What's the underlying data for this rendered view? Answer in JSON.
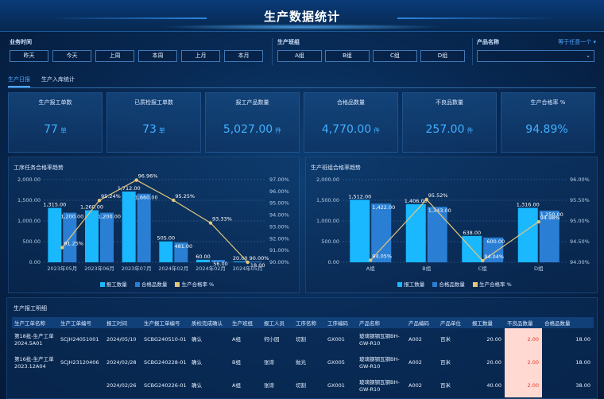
{
  "page": {
    "title": "生产数据统计"
  },
  "filters": {
    "time": {
      "label": "业务时间",
      "options": [
        "昨天",
        "今天",
        "上周",
        "本周",
        "上月",
        "本月"
      ]
    },
    "team": {
      "label": "生产班组",
      "options": [
        "A组",
        "B组",
        "C组",
        "D组"
      ]
    },
    "product": {
      "label": "产品名称",
      "match_link": "等于任意一个 ▾",
      "value": ""
    }
  },
  "tabs": [
    {
      "label": "生产日报",
      "active": true
    },
    {
      "label": "生产入库统计",
      "active": false
    }
  ],
  "kpis": [
    {
      "label": "生产报工单数",
      "value": "77",
      "unit": "单"
    },
    {
      "label": "已质检报工单数",
      "value": "73",
      "unit": "单"
    },
    {
      "label": "报工产品数量",
      "value": "5,027.00",
      "unit": "件"
    },
    {
      "label": "合格品数量",
      "value": "4,770.00",
      "unit": "件"
    },
    {
      "label": "不良品数量",
      "value": "257.00",
      "unit": "件"
    },
    {
      "label": "生产合格率 %",
      "value": "94.89%",
      "unit": ""
    }
  ],
  "chart_data": [
    {
      "type": "bar",
      "title": "工序任务合格率趋势",
      "categories": [
        "2023年05月",
        "2023年06月",
        "2023年07月",
        "2024年02月",
        "2024年02月",
        "2024年05月"
      ],
      "ylim": [
        0,
        2000
      ],
      "y2lim": [
        90,
        97
      ],
      "yticks": [
        "0.00",
        "500.00",
        "1,000.00",
        "1,500.00",
        "2,000.00"
      ],
      "y2ticks": [
        "90.00%",
        "91.00%",
        "92.00%",
        "93.00%",
        "94.00%",
        "95.00%",
        "96.00%",
        "97.00%"
      ],
      "series": [
        {
          "name": "报工数量",
          "kind": "bar",
          "color": "#19b8ff",
          "values": [
            1315,
            1260,
            1712,
            505,
            60,
            20
          ]
        },
        {
          "name": "合格品数量",
          "kind": "bar",
          "color": "#2a7fd4",
          "values": [
            1200,
            1200,
            1660,
            481,
            56,
            18
          ]
        },
        {
          "name": "生产合格率 %",
          "kind": "line",
          "color": "#e5c77a",
          "axis": "right",
          "values": [
            91.25,
            95.24,
            96.96,
            95.25,
            93.33,
            90.0
          ]
        }
      ],
      "bar_labels": [
        [
          "1,315.00",
          "1,260.00",
          "1,712.00",
          "505.00",
          "60.00",
          "20.00"
        ],
        [
          "1,200.00",
          "1,200.00",
          "1,660.00",
          "481.00",
          "56.00",
          "18.00"
        ]
      ],
      "line_labels": [
        "91.25%",
        "95.24%",
        "96.96%",
        "95.25%",
        "93.33%",
        "90.00%"
      ]
    },
    {
      "type": "bar",
      "title": "生产班组合格率趋势",
      "categories": [
        "A组",
        "B组",
        "C组",
        "D组"
      ],
      "ylim": [
        0,
        2000
      ],
      "y2lim": [
        94,
        96
      ],
      "yticks": [
        "0.00",
        "500.00",
        "1,000.00",
        "1,500.00",
        "2,000.00"
      ],
      "y2ticks": [
        "94.00%",
        "94.50%",
        "95.00%",
        "95.50%",
        "96.00%"
      ],
      "series": [
        {
          "name": "报工数量",
          "kind": "bar",
          "color": "#19b8ff",
          "values": [
            1512,
            1406,
            638,
            1316
          ]
        },
        {
          "name": "合格品数量",
          "kind": "bar",
          "color": "#2a7fd4",
          "values": [
            1422,
            1343,
            600,
            1250
          ]
        },
        {
          "name": "生产合格率 %",
          "kind": "line",
          "color": "#e5c77a",
          "axis": "right",
          "values": [
            94.05,
            95.52,
            94.04,
            94.98
          ]
        }
      ],
      "bar_labels": [
        [
          "1,512.00",
          "1,406.00",
          "638.00",
          "1,316.00"
        ],
        [
          "1,422.00",
          "1,343.00",
          "600.00",
          "1,250.00"
        ]
      ],
      "line_labels": [
        "94.05%",
        "95.52%",
        "94.04%",
        "94.98%"
      ]
    }
  ],
  "detail": {
    "title": "生产报工明细",
    "columns": [
      "生产工单名称",
      "生产工单编号",
      "报工时间",
      "生产报工单编号",
      "质检完成确认",
      "生产班组",
      "报工人员",
      "工序名称",
      "工序编码",
      "产品名称",
      "产品编码",
      "产品单位",
      "报工数量",
      "不良品数量",
      "合格品数量"
    ],
    "rows": [
      [
        "第18批-生产工单2024.5A01",
        "SCJH24051001",
        "2024/05/10",
        "SCBG240510-01",
        "确认",
        "A组",
        "何小园",
        "切割",
        "GX001",
        "玻璃钢钢瓦钢BH-GW-R10",
        "A002",
        "百米",
        "20.00",
        "2.00",
        "18.00"
      ],
      [
        "第16批-生产工单2023.12A04",
        "SCJH23120406",
        "2024/02/28",
        "SCBG240228-01",
        "确认",
        "B组",
        "张谛",
        "抛光",
        "GX005",
        "玻璃钢钢瓦钢BH-GW-R10",
        "A002",
        "百米",
        "20.00",
        "2.00",
        "18.00"
      ],
      [
        "",
        "",
        "2024/02/26",
        "SCBG240226-01",
        "确认",
        "A组",
        "张谛",
        "切割",
        "GX001",
        "玻璃钢钢瓦钢BH-GW-R10",
        "A002",
        "百米",
        "40.00",
        "2.00",
        "38.00"
      ]
    ]
  }
}
